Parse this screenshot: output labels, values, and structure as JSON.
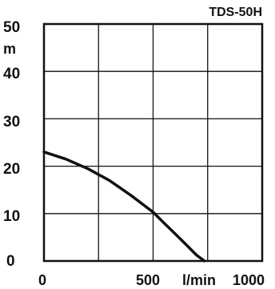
{
  "chart_data": {
    "type": "line",
    "title": "TDS-50H",
    "xlabel": "l/min",
    "ylabel": "m",
    "xlim": [
      0,
      1000
    ],
    "ylim": [
      0,
      50
    ],
    "x_ticks": [
      "0",
      "500",
      "1000"
    ],
    "y_ticks": [
      "0",
      "10",
      "20",
      "30",
      "40",
      "50"
    ],
    "grid": true,
    "series": [
      {
        "x": [
          0,
          100,
          200,
          300,
          400,
          500,
          550,
          600,
          650,
          700,
          735
        ],
        "y": [
          23,
          21.5,
          19.5,
          17,
          13.8,
          10.3,
          8,
          5.8,
          3.5,
          1.2,
          0
        ]
      }
    ],
    "colors": {
      "curve": "#111111",
      "grid": "#111111",
      "background": "#ffffff"
    }
  }
}
